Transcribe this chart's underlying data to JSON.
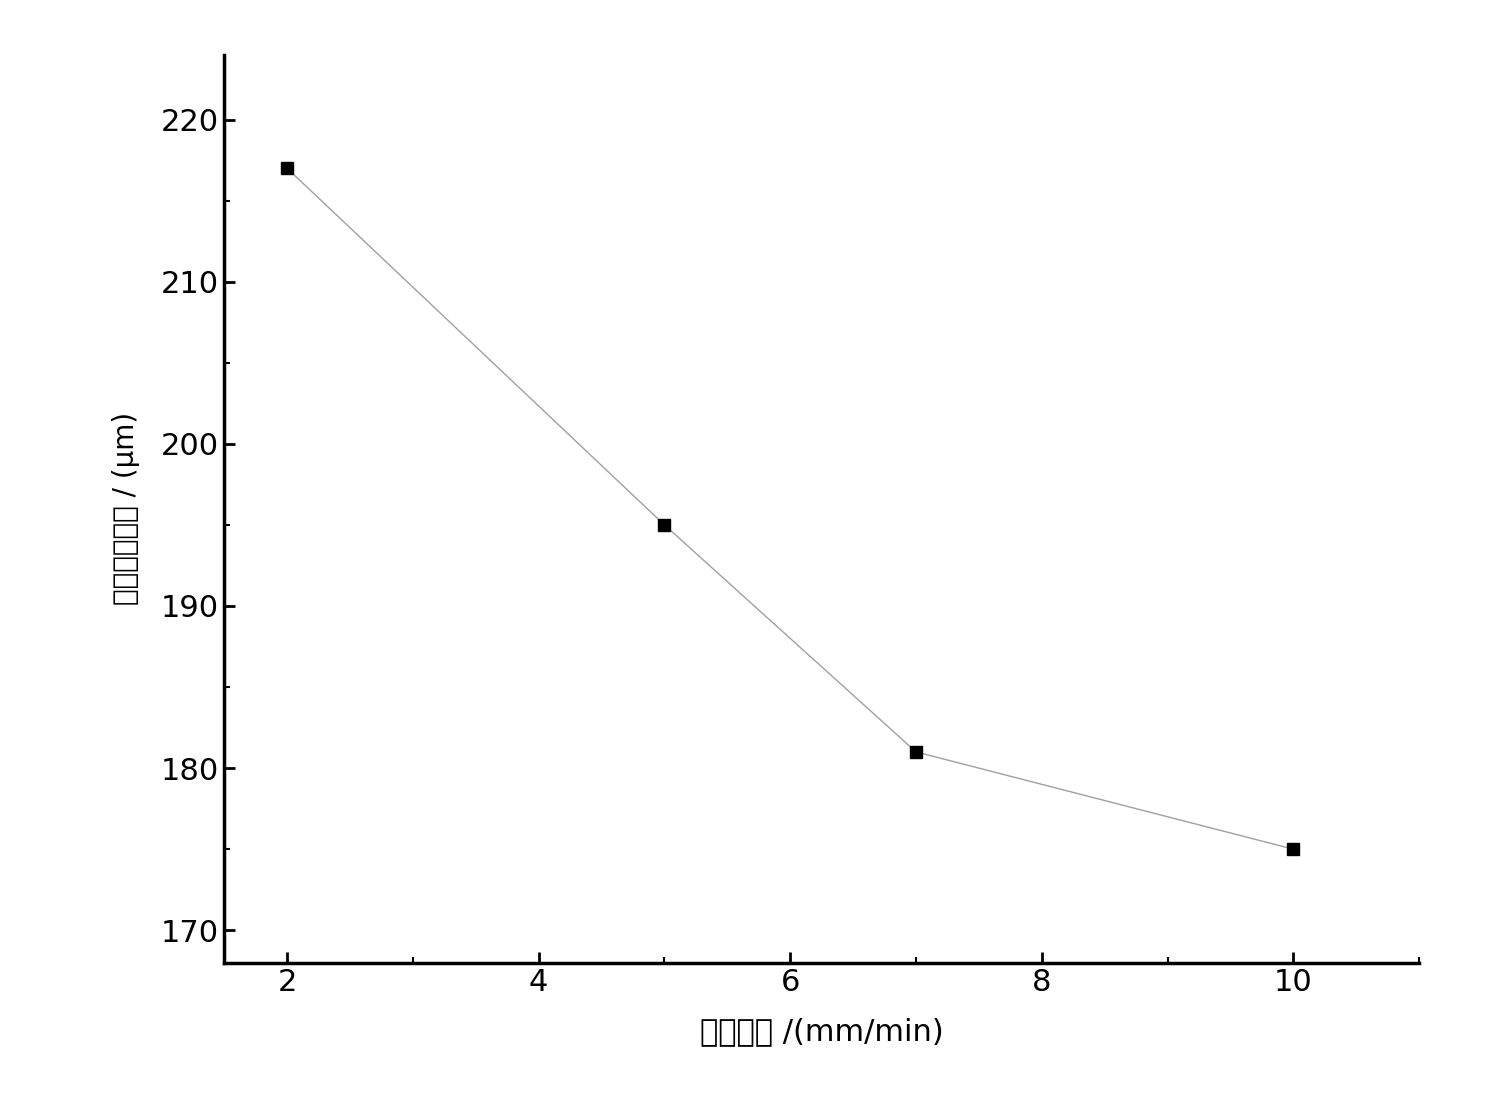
{
  "x": [
    2,
    5,
    7,
    10
  ],
  "y": [
    217,
    195,
    181,
    175
  ],
  "xlabel": "拉晶速率 /(mm/min)",
  "ylabel": "一次枝晶间距 / (μm)",
  "xlim": [
    1.5,
    11
  ],
  "ylim": [
    168,
    224
  ],
  "xticks": [
    2,
    4,
    6,
    8,
    10
  ],
  "yticks": [
    170,
    180,
    190,
    200,
    210,
    220
  ],
  "line_color": "#a0a0a0",
  "marker_color": "#000000",
  "marker": "s",
  "marker_size": 9,
  "line_width": 1.0,
  "xlabel_fontsize": 22,
  "ylabel_fontsize": 20,
  "tick_fontsize": 22,
  "spine_linewidth": 2.5,
  "background_color": "#ffffff",
  "figwidth": 14.94,
  "figheight": 10.94,
  "dpi": 100
}
